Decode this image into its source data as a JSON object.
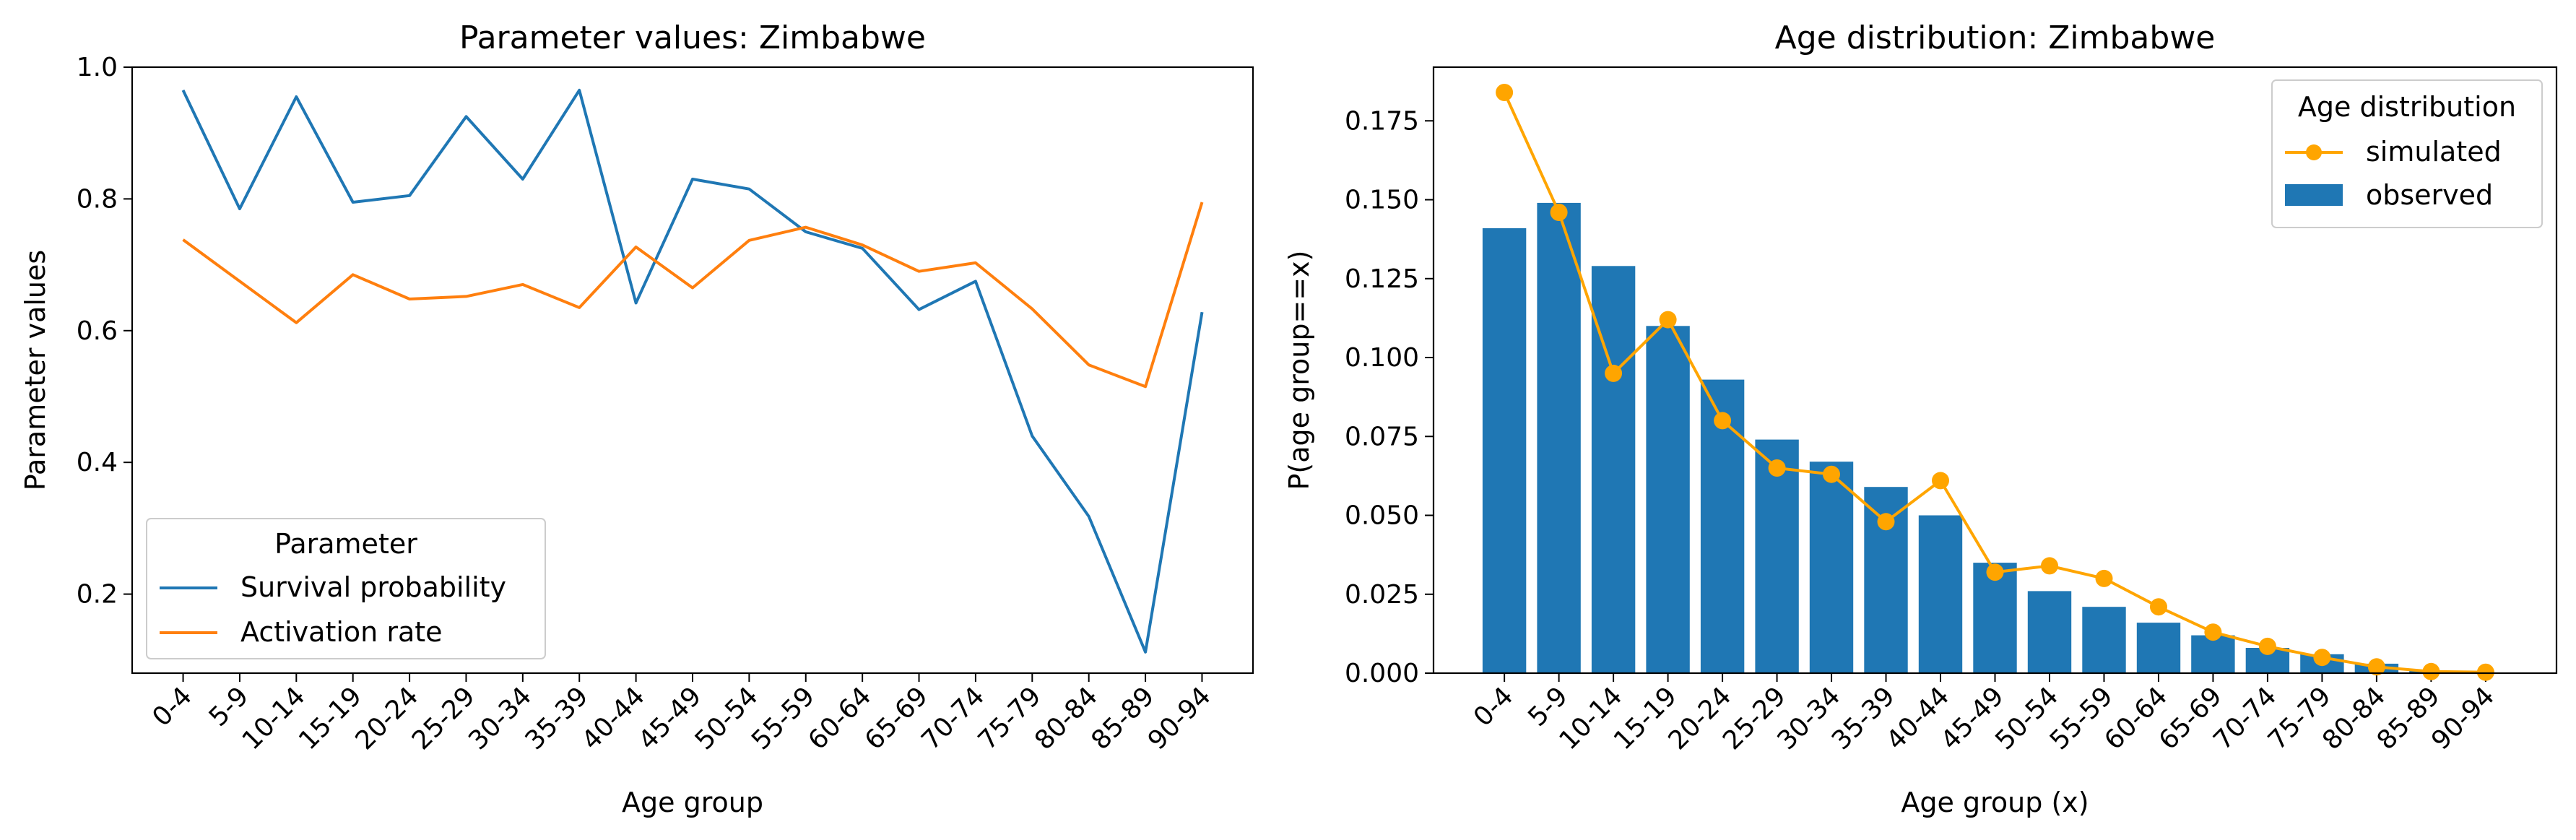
{
  "chart_data": [
    {
      "type": "line",
      "title": "Parameter values: Zimbabwe",
      "xlabel": "Age group",
      "ylabel": "Parameter values",
      "ylim": [
        0.08,
        1.0
      ],
      "yticks": [
        0.2,
        0.4,
        0.6,
        0.8,
        1.0
      ],
      "ytick_labels": [
        "0.2",
        "0.4",
        "0.6",
        "0.8",
        "1.0"
      ],
      "categories": [
        "0-4",
        "5-9",
        "10-14",
        "15-19",
        "20-24",
        "25-29",
        "30-34",
        "35-39",
        "40-44",
        "45-49",
        "50-54",
        "55-59",
        "60-64",
        "65-69",
        "70-74",
        "75-79",
        "80-84",
        "85-89",
        "90-94"
      ],
      "legend": {
        "title": "Parameter",
        "placement": "lower-left"
      },
      "series": [
        {
          "name": "Survival probability",
          "color": "#1f77b4",
          "values": [
            0.965,
            0.785,
            0.955,
            0.795,
            0.805,
            0.925,
            0.83,
            0.965,
            0.642,
            0.83,
            0.815,
            0.75,
            0.725,
            0.632,
            0.675,
            0.44,
            0.318,
            0.112,
            0.628
          ]
        },
        {
          "name": "Activation rate",
          "color": "#ff7f0e",
          "values": [
            0.738,
            0.675,
            0.612,
            0.685,
            0.648,
            0.652,
            0.67,
            0.635,
            0.727,
            0.665,
            0.737,
            0.757,
            0.73,
            0.69,
            0.703,
            0.633,
            0.548,
            0.515,
            0.795
          ]
        }
      ]
    },
    {
      "type": "bar",
      "title": "Age distribution: Zimbabwe",
      "xlabel": "Age group (x)",
      "ylabel": "P(age group==x)",
      "ylim": [
        0.0,
        0.192
      ],
      "yticks": [
        0.0,
        0.025,
        0.05,
        0.075,
        0.1,
        0.125,
        0.15,
        0.175
      ],
      "ytick_labels": [
        "0.000",
        "0.025",
        "0.050",
        "0.075",
        "0.100",
        "0.125",
        "0.150",
        "0.175"
      ],
      "categories": [
        "0-4",
        "5-9",
        "10-14",
        "15-19",
        "20-24",
        "25-29",
        "30-34",
        "35-39",
        "40-44",
        "45-49",
        "50-54",
        "55-59",
        "60-64",
        "65-69",
        "70-74",
        "75-79",
        "80-84",
        "85-89",
        "90-94"
      ],
      "legend": {
        "title": "Age distribution",
        "placement": "upper-right"
      },
      "series": [
        {
          "name": "simulated",
          "kind": "line-marker",
          "color": "#ffa500",
          "values": [
            0.184,
            0.146,
            0.095,
            0.112,
            0.08,
            0.065,
            0.063,
            0.048,
            0.061,
            0.032,
            0.034,
            0.03,
            0.021,
            0.013,
            0.0085,
            0.005,
            0.002,
            0.0005,
            0.0003
          ]
        },
        {
          "name": "observed",
          "kind": "bar",
          "color": "#1f77b4",
          "values": [
            0.141,
            0.149,
            0.129,
            0.11,
            0.093,
            0.074,
            0.067,
            0.059,
            0.05,
            0.035,
            0.026,
            0.021,
            0.016,
            0.012,
            0.008,
            0.006,
            0.003,
            0.0008,
            0.0002
          ]
        }
      ]
    }
  ]
}
